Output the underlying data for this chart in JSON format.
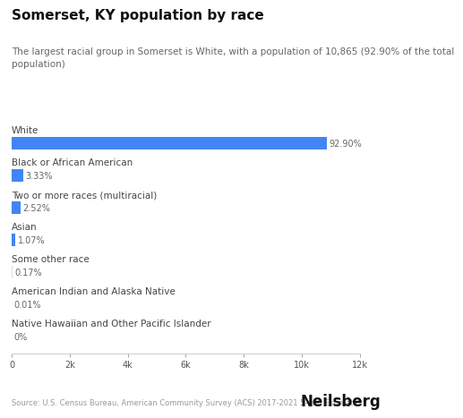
{
  "title": "Somerset, KY population by race",
  "subtitle": "The largest racial group in Somerset is White, with a population of 10,865 (92.90% of the total\npopulation)",
  "categories": [
    "White",
    "Black or African American",
    "Two or more races (multiracial)",
    "Asian",
    "Some other race",
    "American Indian and Alaska Native",
    "Native Hawaiian and Other Pacific Islander"
  ],
  "values": [
    10865,
    390,
    295,
    125,
    20,
    1,
    0
  ],
  "percentages": [
    "92.90%",
    "3.33%",
    "2.52%",
    "1.07%",
    "0.17%",
    "0.01%",
    "0%"
  ],
  "bar_colors": [
    "#4285f4",
    "#4285f4",
    "#4285f4",
    "#4285f4",
    "#d0dff7",
    "#d0dff7",
    "#d0dff7"
  ],
  "background_color": "#ffffff",
  "xlim": [
    0,
    12000
  ],
  "xticks": [
    0,
    2000,
    4000,
    6000,
    8000,
    10000,
    12000
  ],
  "xtick_labels": [
    "0",
    "2k",
    "4k",
    "6k",
    "8k",
    "10k",
    "12k"
  ],
  "source_text": "Source: U.S. Census Bureau, American Community Survey (ACS) 2017-2021 5-Year Estimates",
  "brand_text": "Neilsberg",
  "title_fontsize": 11,
  "subtitle_fontsize": 7.5,
  "category_fontsize": 7.5,
  "pct_fontsize": 7,
  "axis_fontsize": 7,
  "source_fontsize": 6,
  "brand_fontsize": 12
}
